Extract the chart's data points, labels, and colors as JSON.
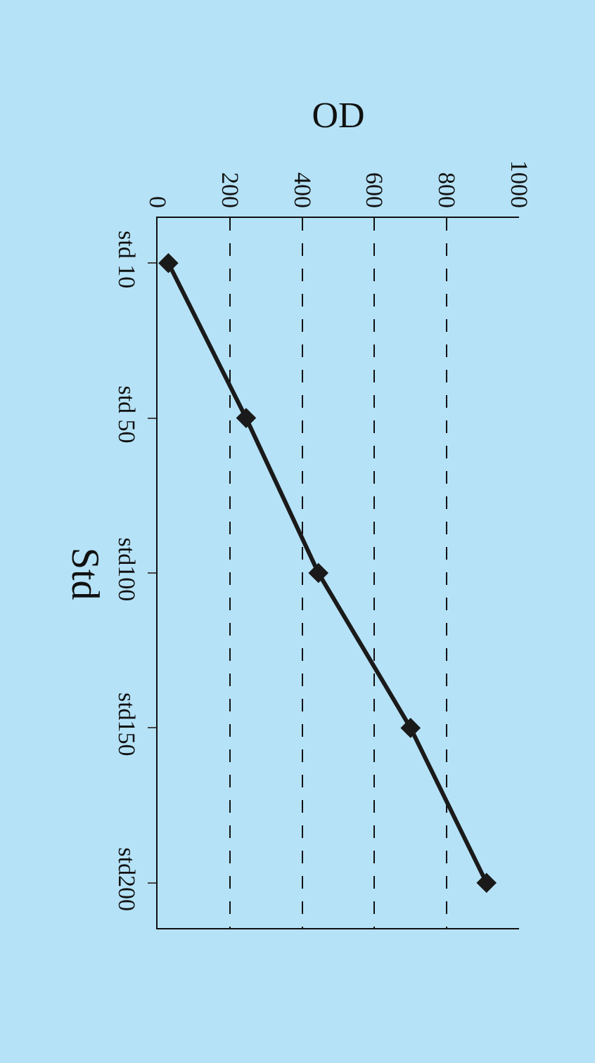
{
  "chart_data": {
    "type": "line",
    "orientation": "horizontal",
    "xlabel": "OD",
    "ylabel": "Std",
    "categories": [
      "std 10",
      "std 50",
      "std100",
      "std150",
      "std200"
    ],
    "series": [
      {
        "color": "#1a1a1a",
        "values": [
          30,
          245,
          445,
          700,
          910
        ]
      }
    ],
    "xlim": [
      0,
      1000
    ],
    "xticks": [
      0,
      200,
      400,
      600,
      800,
      1000
    ],
    "grid": "x",
    "marker": "diamond",
    "line_style": "solid",
    "legend": false
  }
}
